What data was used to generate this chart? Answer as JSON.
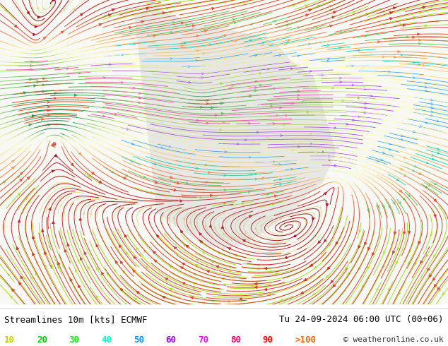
{
  "title_left": "Streamlines 10m [kts] ECMWF",
  "title_right": "Tu 24-09-2024 06:00 UTC (00+06)",
  "copyright": "© weatheronline.co.uk",
  "legend_values": [
    "10",
    "20",
    "30",
    "40",
    "50",
    "60",
    "70",
    "80",
    "90",
    ">100"
  ],
  "legend_colors": [
    "#cccc00",
    "#00cc00",
    "#00ff00",
    "#00ffcc",
    "#0099ff",
    "#9900ff",
    "#ff00ff",
    "#ff0066",
    "#ff0000",
    "#ff6600"
  ],
  "bg_color": "#ffffff",
  "map_bg": "#f0f0f0",
  "figsize": [
    6.34,
    4.9
  ],
  "dpi": 100,
  "bottom_bar_color": "#e8e8e8",
  "text_color": "#000000",
  "title_fontsize": 9,
  "legend_fontsize": 9
}
